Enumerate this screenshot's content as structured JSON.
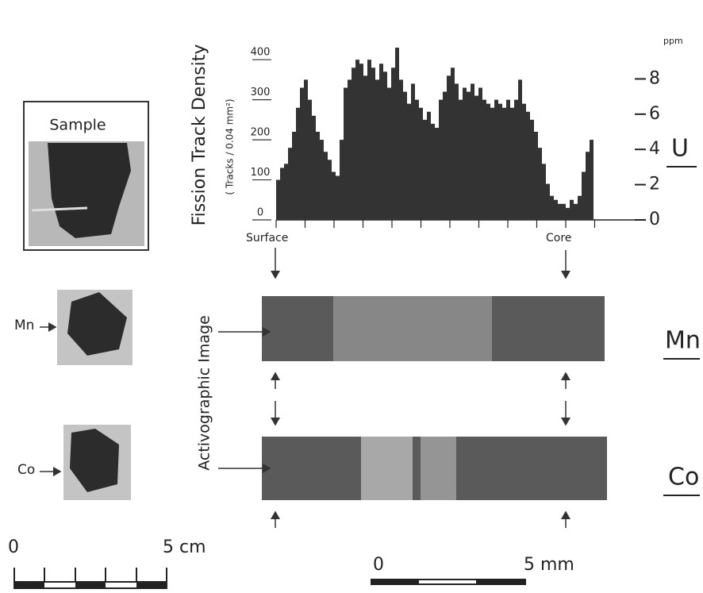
{
  "chart_data": {
    "type": "bar",
    "title": "Fission Track Density",
    "subtitle": "( Tracks / 0.04 mm²)",
    "values": [
      100,
      130,
      140,
      180,
      220,
      280,
      330,
      350,
      300,
      260,
      220,
      200,
      170,
      150,
      120,
      110,
      200,
      330,
      350,
      380,
      400,
      390,
      360,
      400,
      380,
      350,
      390,
      370,
      330,
      380,
      430,
      350,
      320,
      290,
      340,
      300,
      280,
      250,
      270,
      240,
      230,
      300,
      320,
      360,
      380,
      340,
      300,
      330,
      320,
      340,
      310,
      330,
      300,
      290,
      280,
      300,
      290,
      280,
      300,
      280,
      300,
      350,
      290,
      270,
      250,
      220,
      180,
      140,
      90,
      60,
      50,
      40,
      40,
      30,
      50,
      40,
      60,
      120,
      170,
      200
    ],
    "color": "#333333",
    "ylim": [
      0,
      440
    ],
    "yticks": [
      0,
      100,
      200,
      300,
      400
    ],
    "y2lim": [
      0,
      10
    ],
    "y2ticks": [
      0,
      2,
      4,
      6,
      8
    ],
    "y2_unit": "ppm",
    "y2_label": "U",
    "x_start_label": "Surface",
    "x_end_label": "Core"
  },
  "labels": {
    "sample": "Sample",
    "mn_small": "Mn",
    "co_small": "Co",
    "activographic": "Activographic Image",
    "mn_big": "Mn",
    "co_big": "Co",
    "scale_cm": {
      "start": "0",
      "end": "5 cm"
    },
    "scale_mm": {
      "start": "0",
      "end": "5 mm"
    }
  }
}
